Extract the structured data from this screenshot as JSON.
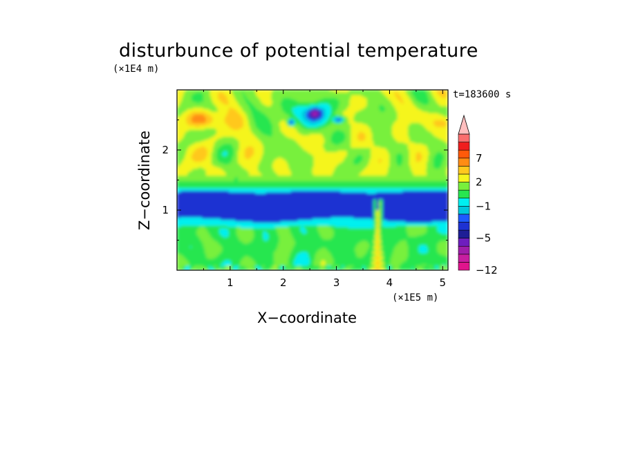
{
  "chart_data": {
    "type": "heatmap",
    "title": "disturbunce of potential temperature",
    "xlabel": "X−coordinate",
    "ylabel": "Z−coordinate",
    "x_unit": "(×1E5 m)",
    "y_unit": "(×1E4 m)",
    "annotation": "t=183600 s",
    "xlim": [
      0,
      5.1
    ],
    "ylim": [
      0,
      3.0
    ],
    "x_ticks": [
      1,
      2,
      3,
      4,
      5
    ],
    "y_ticks": [
      1,
      2
    ],
    "colorbar": {
      "tick_labels": [
        "7",
        "2",
        "−1",
        "−5",
        "−12"
      ],
      "tick_values": [
        7,
        2,
        -1,
        -5,
        -12
      ],
      "levels": [
        -12,
        -10,
        -8,
        -6,
        -5,
        -4,
        -3,
        -2,
        -1,
        0,
        1,
        2,
        3,
        5,
        7,
        9,
        11
      ],
      "colors": [
        "#e0148c",
        "#c81ea0",
        "#a01eaa",
        "#6e1ebe",
        "#1e1e96",
        "#1e32d2",
        "#1e5aff",
        "#00c8dc",
        "#00f0f0",
        "#28e650",
        "#78f03c",
        "#f5f51e",
        "#ffc81e",
        "#ff8c14",
        "#ff5a0a",
        "#f01e1e",
        "#fa6e6e",
        "#ffbebe"
      ],
      "extend": "max"
    },
    "regions": [
      {
        "feature": "upper layer",
        "z_range": [
          1.45,
          3.0
        ],
        "dominant_value_range": [
          0,
          3
        ]
      },
      {
        "feature": "strong cold band",
        "z_range": [
          0.8,
          1.3
        ],
        "value": -5
      },
      {
        "feature": "lower layer",
        "z_range": [
          0,
          0.8
        ],
        "dominant_value_range": [
          -1,
          1
        ]
      },
      {
        "feature": "narrow vertical plume",
        "x": 3.78,
        "z_range": [
          0,
          1.15
        ]
      },
      {
        "feature": "warm maximum",
        "x_range": [
          0.3,
          1.0
        ],
        "z_range": [
          2.3,
          2.7
        ],
        "value": 3
      },
      {
        "feature": "cold spots",
        "x_range": [
          2.0,
          3.3
        ],
        "z_range": [
          2.4,
          2.8
        ],
        "value": -5
      }
    ]
  }
}
